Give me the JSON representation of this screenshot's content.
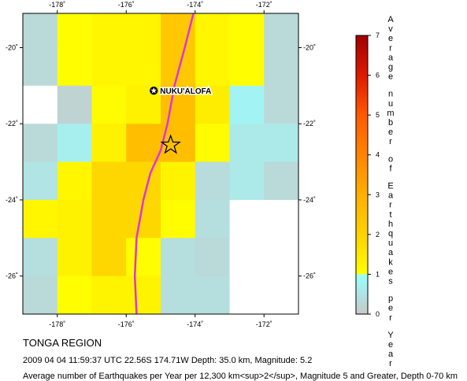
{
  "map": {
    "lon_range": [
      -179,
      -171
    ],
    "lat_range": [
      -27,
      -19.1
    ],
    "lon_ticks": [
      {
        "value": -178,
        "label": "-178˚"
      },
      {
        "value": -176,
        "label": "-176˚"
      },
      {
        "value": -174,
        "label": "-174˚"
      },
      {
        "value": -172,
        "label": "-172˚"
      }
    ],
    "lat_ticks": [
      {
        "value": -20,
        "label": "-20˚"
      },
      {
        "value": -22,
        "label": "-22˚"
      },
      {
        "value": -24,
        "label": "-24˚"
      },
      {
        "value": -26,
        "label": "-26˚"
      }
    ],
    "cell_size_deg": 1,
    "cell_rows": [
      {
        "lat_top": -19.1,
        "values": [
          0.3,
          1.05,
          1.2,
          1.2,
          2.3,
          1.2,
          1.05,
          0.3
        ]
      },
      {
        "lat_top": -20,
        "values": [
          0.3,
          1.05,
          1.2,
          1.2,
          2.3,
          1.2,
          1.05,
          0.3
        ]
      },
      {
        "lat_top": -21,
        "values": [
          0.0,
          0.2,
          1.1,
          1.3,
          2.6,
          1.4,
          0.8,
          0.3
        ]
      },
      {
        "lat_top": -22,
        "values": [
          0.3,
          0.7,
          1.3,
          2.6,
          2.6,
          1.1,
          0.6,
          0.6
        ]
      },
      {
        "lat_top": -23,
        "values": [
          0.5,
          1.2,
          1.9,
          1.9,
          1.25,
          0.35,
          0.6,
          0.3
        ]
      },
      {
        "lat_top": -24,
        "values": [
          1.2,
          1.3,
          1.9,
          1.9,
          1.05,
          0.4,
          0.0,
          0.0
        ]
      },
      {
        "lat_top": -25,
        "values": [
          0.4,
          1.3,
          1.9,
          1.05,
          0.4,
          0.3,
          0.0,
          0.0
        ]
      },
      {
        "lat_top": -26,
        "values": [
          0.3,
          1.05,
          1.25,
          1.25,
          0.4,
          0.4,
          0.0,
          0.0
        ]
      }
    ],
    "trench": [
      [
        -174.05,
        -19.1
      ],
      [
        -174.3,
        -20.0
      ],
      [
        -174.6,
        -21.0
      ],
      [
        -174.8,
        -22.0
      ],
      [
        -175.0,
        -22.7
      ],
      [
        -175.3,
        -23.3
      ],
      [
        -175.5,
        -24.0
      ],
      [
        -175.7,
        -25.0
      ],
      [
        -175.75,
        -26.0
      ],
      [
        -175.7,
        -27.0
      ]
    ],
    "city": {
      "name": "NUKU'ALOFA",
      "lon": -175.2,
      "lat": -21.13
    },
    "epicenter": {
      "lon": -174.71,
      "lat": -22.56
    },
    "colors": {
      "trench": "#e233d9",
      "city_star": "#000000",
      "epicenter_star": "#000000"
    }
  },
  "colorbar": {
    "title_chars": [
      "A",
      "v",
      "e",
      "r",
      "a",
      "g",
      "e",
      "n",
      "u",
      "m",
      "b",
      "e",
      "r",
      "o",
      "f",
      "E",
      "a",
      "r",
      "t",
      "h",
      "q",
      "u",
      "a",
      "k",
      "e",
      "s",
      "p",
      "e",
      "r",
      "Y",
      "e",
      "a",
      "r"
    ],
    "ticks": [
      "0",
      "1",
      "2",
      "3",
      "4",
      "5",
      "6",
      "7"
    ],
    "range": [
      0,
      7
    ],
    "stops": [
      {
        "value": 0,
        "color": "#c8c8c8"
      },
      {
        "value": 1,
        "color": "#99ffff"
      },
      {
        "value": 1.001,
        "color": "#ffff00"
      },
      {
        "value": 2,
        "color": "#ffd200"
      },
      {
        "value": 3,
        "color": "#ffb000"
      },
      {
        "value": 4,
        "color": "#ff8400"
      },
      {
        "value": 5,
        "color": "#ff5a00"
      },
      {
        "value": 6,
        "color": "#dd1a00"
      },
      {
        "value": 7,
        "color": "#a00000"
      }
    ]
  },
  "caption": {
    "region": "TONGA REGION",
    "event": "2009 04 04 11:59:37 UTC 22.56S 174.71W Depth: 35.0 km, Magnitude: 5.2",
    "footer": "Average number of Earthquakes per Year per 12,300 km<sup>2</sup>, Magnitude 5 and Greater, Depth 0-70 km"
  }
}
